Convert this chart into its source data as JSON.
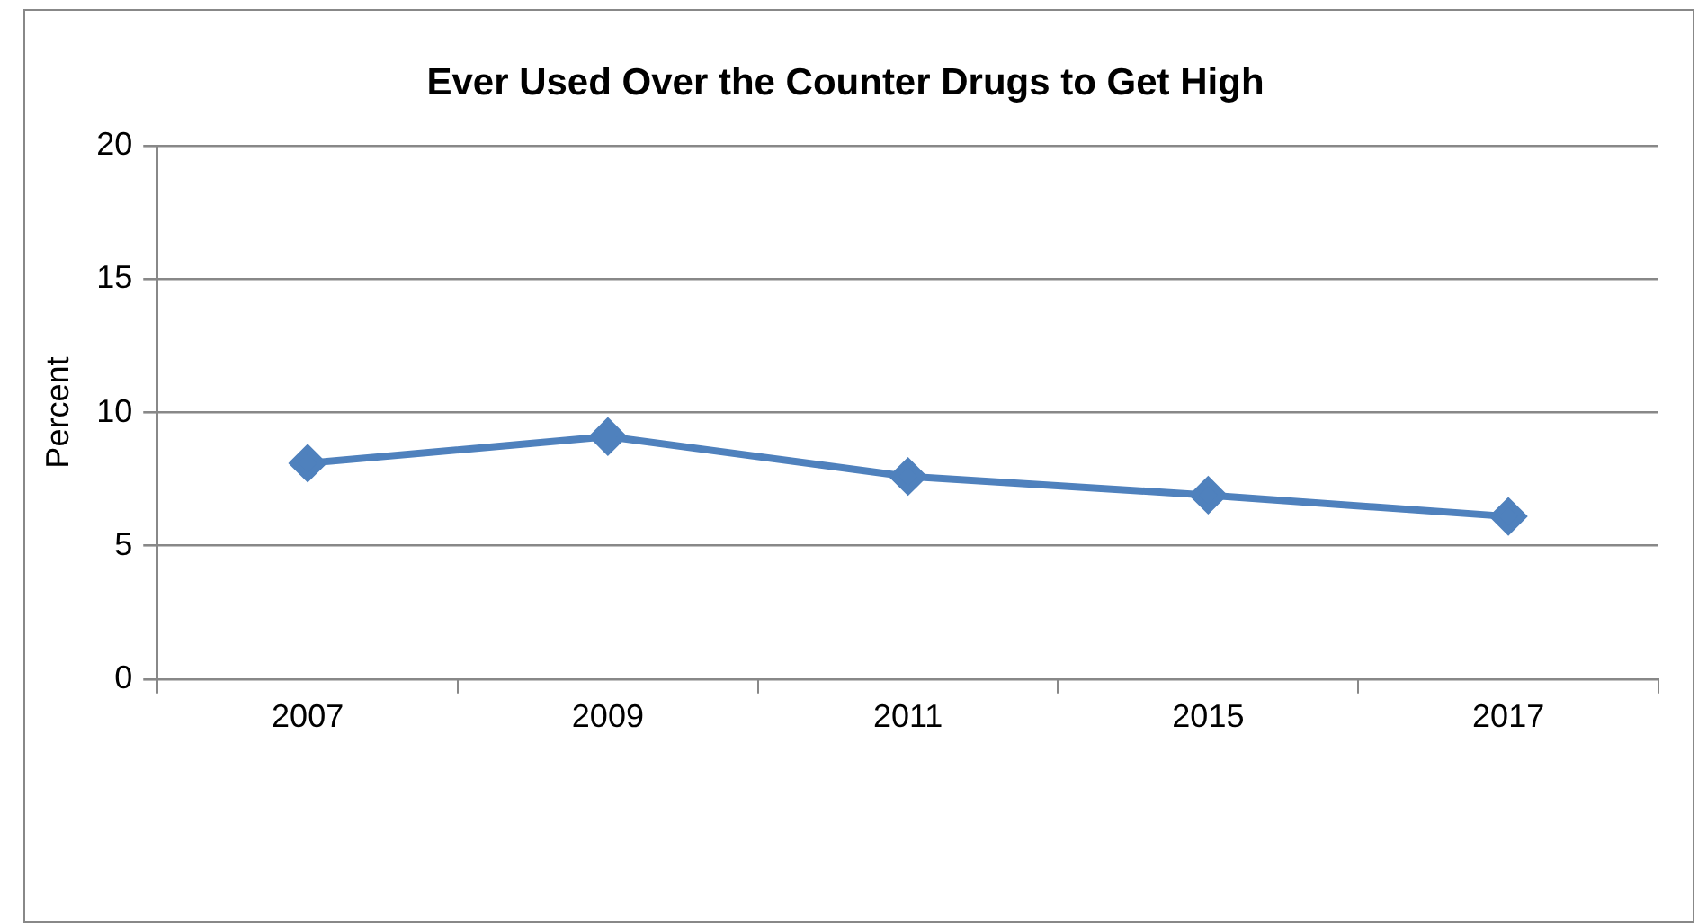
{
  "chart_data": {
    "type": "line",
    "title": "Ever Used Over the Counter Drugs to Get High",
    "ylabel": "Percent",
    "categories": [
      "2007",
      "2009",
      "2011",
      "2015",
      "2017"
    ],
    "series": [
      {
        "color": "#4f81bd",
        "values": [
          8.1,
          9.1,
          7.6,
          6.9,
          6.1
        ]
      }
    ],
    "ylim": [
      0,
      20
    ],
    "yticks": [
      0,
      5,
      10,
      15,
      20
    ],
    "grid": "y",
    "legend": false,
    "marker": "diamond",
    "line_style": "solid"
  }
}
